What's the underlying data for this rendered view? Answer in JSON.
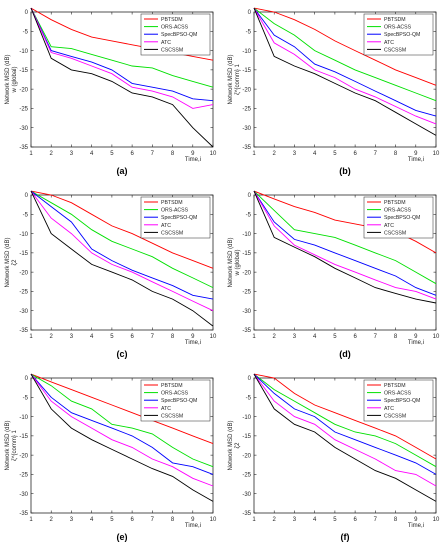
{
  "figure": {
    "series_colors": [
      "#ff0000",
      "#00e000",
      "#0000ff",
      "#ff00ff",
      "#000000"
    ]
  },
  "chart_data": [
    {
      "type": "line",
      "panel_label": "(a)",
      "ylabel": "Network MSD (dB)",
      "y_sublabel": "w (global)",
      "xlabel": "Time,i",
      "xlim": [
        1,
        10
      ],
      "ylim": [
        -35,
        0
      ],
      "xticks": [
        1,
        2,
        3,
        4,
        5,
        6,
        7,
        8,
        9,
        10
      ],
      "yticks": [
        0,
        -5,
        -10,
        -15,
        -20,
        -25,
        -30,
        -35
      ],
      "legend_position": "top-right",
      "x": [
        1,
        2,
        3,
        4,
        5,
        6,
        7,
        8,
        9,
        10
      ],
      "series": [
        {
          "name": "PBTSDM",
          "color": "#ff0000",
          "values": [
            1,
            -2,
            -4.5,
            -6.5,
            -7.5,
            -8.5,
            -9.5,
            -10.5,
            -11.5,
            -12.5
          ]
        },
        {
          "name": "ORS-ACSS",
          "color": "#00e000",
          "values": [
            1,
            -9,
            -9.5,
            -11,
            -12.5,
            -14,
            -14.5,
            -16.5,
            -18,
            -19.5
          ]
        },
        {
          "name": "SpecBPSO-QM",
          "color": "#0000ff",
          "values": [
            1,
            -10,
            -11.5,
            -13,
            -15,
            -18.5,
            -19.5,
            -20.5,
            -22.5,
            -23
          ]
        },
        {
          "name": "ATC",
          "color": "#ff00ff",
          "values": [
            1,
            -10.5,
            -12,
            -14,
            -16,
            -19.5,
            -20.5,
            -22,
            -25,
            -24
          ]
        },
        {
          "name": "CSCSSM",
          "color": "#000000",
          "values": [
            1,
            -12,
            -15,
            -16,
            -18,
            -21,
            -22,
            -24,
            -30,
            -35
          ]
        }
      ]
    },
    {
      "type": "line",
      "panel_label": "(b)",
      "ylabel": "Network MSD (dB)",
      "y_sublabel": "ζ^{comm} 1",
      "xlabel": "Time,i",
      "xlim": [
        1,
        10
      ],
      "ylim": [
        -35,
        0
      ],
      "xticks": [
        1,
        2,
        3,
        4,
        5,
        6,
        7,
        8,
        9,
        10
      ],
      "yticks": [
        0,
        -5,
        -10,
        -15,
        -20,
        -25,
        -30,
        -35
      ],
      "legend_position": "top-right",
      "x": [
        1,
        2,
        3,
        4,
        5,
        6,
        7,
        8,
        9,
        10
      ],
      "series": [
        {
          "name": "PBTSDM",
          "color": "#ff0000",
          "values": [
            1,
            0,
            -2,
            -4.5,
            -7.5,
            -10,
            -12.5,
            -15,
            -17,
            -19
          ]
        },
        {
          "name": "ORS-ACSS",
          "color": "#00e000",
          "values": [
            1,
            -3,
            -6,
            -10,
            -12.5,
            -15,
            -17,
            -19,
            -21,
            -23
          ]
        },
        {
          "name": "SpecBPSO-QM",
          "color": "#0000ff",
          "values": [
            1,
            -6,
            -9,
            -13.5,
            -15.5,
            -18,
            -20.5,
            -23,
            -25.5,
            -27
          ]
        },
        {
          "name": "ATC",
          "color": "#ff00ff",
          "values": [
            1,
            -8,
            -11,
            -15,
            -17,
            -20,
            -22,
            -24.5,
            -27,
            -29
          ]
        },
        {
          "name": "CSCSSM",
          "color": "#000000",
          "values": [
            1,
            -11.5,
            -14,
            -16,
            -18.5,
            -21,
            -23,
            -26,
            -29,
            -32
          ]
        }
      ]
    },
    {
      "type": "line",
      "panel_label": "(c)",
      "ylabel": "Network MSD (dB)",
      "y_sublabel": "ζ2",
      "xlabel": "Time,i",
      "xlim": [
        1,
        10
      ],
      "ylim": [
        -35,
        0
      ],
      "xticks": [
        1,
        2,
        3,
        4,
        5,
        6,
        7,
        8,
        9,
        10
      ],
      "yticks": [
        0,
        -5,
        -10,
        -15,
        -20,
        -25,
        -30,
        -35
      ],
      "legend_position": "top-right",
      "x": [
        1,
        2,
        3,
        4,
        5,
        6,
        7,
        8,
        9,
        10
      ],
      "series": [
        {
          "name": "PBTSDM",
          "color": "#ff0000",
          "values": [
            1,
            0,
            -2,
            -5,
            -8,
            -10,
            -12.5,
            -15,
            -17,
            -19
          ]
        },
        {
          "name": "ORS-ACSS",
          "color": "#00e000",
          "values": [
            1,
            -2,
            -5,
            -9,
            -12,
            -14,
            -16,
            -19,
            -21.5,
            -24
          ]
        },
        {
          "name": "SpecBPSO-QM",
          "color": "#0000ff",
          "values": [
            1,
            -3,
            -7,
            -14,
            -17,
            -19.5,
            -21.5,
            -23.5,
            -26,
            -27
          ]
        },
        {
          "name": "ATC",
          "color": "#ff00ff",
          "values": [
            1,
            -6,
            -10,
            -15,
            -18,
            -20,
            -22.5,
            -25,
            -27.5,
            -30
          ]
        },
        {
          "name": "CSCSSM",
          "color": "#000000",
          "values": [
            1,
            -10,
            -14,
            -18,
            -20,
            -22,
            -25,
            -27,
            -30,
            -34
          ]
        }
      ]
    },
    {
      "type": "line",
      "panel_label": "(d)",
      "ylabel": "Network MSD (dB)",
      "y_sublabel": "w (global)",
      "xlabel": "Time,i",
      "xlim": [
        1,
        10
      ],
      "ylim": [
        -35,
        0
      ],
      "xticks": [
        1,
        2,
        3,
        4,
        5,
        6,
        7,
        8,
        9,
        10
      ],
      "yticks": [
        0,
        -5,
        -10,
        -15,
        -20,
        -25,
        -30,
        -35
      ],
      "legend_position": "top-right",
      "x": [
        1,
        2,
        3,
        4,
        5,
        6,
        7,
        8,
        9,
        10
      ],
      "series": [
        {
          "name": "PBTSDM",
          "color": "#ff0000",
          "values": [
            1,
            -1,
            -3,
            -4.5,
            -6.5,
            -7.5,
            -8.5,
            -9.5,
            -12,
            -15
          ]
        },
        {
          "name": "ORS-ACSS",
          "color": "#00e000",
          "values": [
            1,
            -4,
            -9,
            -10,
            -11,
            -13,
            -15,
            -17,
            -20,
            -23
          ]
        },
        {
          "name": "SpecBPSO-QM",
          "color": "#0000ff",
          "values": [
            1,
            -7,
            -11.5,
            -13,
            -15,
            -17,
            -19,
            -21,
            -24,
            -26
          ]
        },
        {
          "name": "ATC",
          "color": "#ff00ff",
          "values": [
            1,
            -8,
            -13,
            -15.5,
            -18,
            -20,
            -22,
            -24,
            -25,
            -27
          ]
        },
        {
          "name": "CSCSSM",
          "color": "#000000",
          "values": [
            1,
            -11,
            -13.5,
            -16,
            -19,
            -21.5,
            -24,
            -25.5,
            -27,
            -28
          ]
        }
      ]
    },
    {
      "type": "line",
      "panel_label": "(e)",
      "ylabel": "Network MSD (dB)",
      "y_sublabel": "ζ^{comm} 1",
      "xlabel": "Time,i",
      "xlim": [
        1,
        10
      ],
      "ylim": [
        -35,
        0
      ],
      "xticks": [
        1,
        2,
        3,
        4,
        5,
        6,
        7,
        8,
        9,
        10
      ],
      "yticks": [
        0,
        -5,
        -10,
        -15,
        -20,
        -25,
        -30,
        -35
      ],
      "legend_position": "top-right",
      "x": [
        1,
        2,
        3,
        4,
        5,
        6,
        7,
        8,
        9,
        10
      ],
      "series": [
        {
          "name": "PBTSDM",
          "color": "#ff0000",
          "values": [
            1,
            -1,
            -3,
            -5,
            -7,
            -9,
            -11,
            -13,
            -15,
            -17
          ]
        },
        {
          "name": "ORS-ACSS",
          "color": "#00e000",
          "values": [
            1,
            -2,
            -6,
            -8,
            -12,
            -13,
            -14.5,
            -18,
            -21,
            -23
          ]
        },
        {
          "name": "SpecBPSO-QM",
          "color": "#0000ff",
          "values": [
            1,
            -5,
            -9,
            -11,
            -13,
            -15,
            -18,
            -22,
            -23,
            -25
          ]
        },
        {
          "name": "ATC",
          "color": "#ff00ff",
          "values": [
            1,
            -6,
            -10,
            -13,
            -16,
            -18,
            -21,
            -23,
            -26,
            -28
          ]
        },
        {
          "name": "CSCSSM",
          "color": "#000000",
          "values": [
            1,
            -8,
            -13,
            -16,
            -18.5,
            -21,
            -23.5,
            -25.5,
            -29,
            -32
          ]
        }
      ]
    },
    {
      "type": "line",
      "panel_label": "(f)",
      "ylabel": "Network MSD (dB)",
      "y_sublabel": "ζ2",
      "xlabel": "Time,i",
      "xlim": [
        1,
        10
      ],
      "ylim": [
        -35,
        0
      ],
      "xticks": [
        1,
        2,
        3,
        4,
        5,
        6,
        7,
        8,
        9,
        10
      ],
      "yticks": [
        0,
        -5,
        -10,
        -15,
        -20,
        -25,
        -30,
        -35
      ],
      "legend_position": "top-right",
      "x": [
        1,
        2,
        3,
        4,
        5,
        6,
        7,
        8,
        9,
        10
      ],
      "series": [
        {
          "name": "PBTSDM",
          "color": "#ff0000",
          "values": [
            1,
            0,
            -4,
            -7,
            -9,
            -11,
            -13,
            -15,
            -18,
            -21
          ]
        },
        {
          "name": "ORS-ACSS",
          "color": "#00e000",
          "values": [
            1,
            -3,
            -6,
            -9,
            -12,
            -14,
            -15,
            -17,
            -20,
            -23
          ]
        },
        {
          "name": "SpecBPSO-QM",
          "color": "#0000ff",
          "values": [
            1,
            -4,
            -8,
            -10,
            -14,
            -16,
            -18,
            -20,
            -22,
            -25
          ]
        },
        {
          "name": "ATC",
          "color": "#ff00ff",
          "values": [
            1,
            -6,
            -10,
            -12,
            -16,
            -18.5,
            -21,
            -24,
            -25,
            -28
          ]
        },
        {
          "name": "CSCSSM",
          "color": "#000000",
          "values": [
            1,
            -8,
            -12,
            -14,
            -18,
            -21,
            -24,
            -26,
            -29,
            -32
          ]
        }
      ]
    }
  ]
}
